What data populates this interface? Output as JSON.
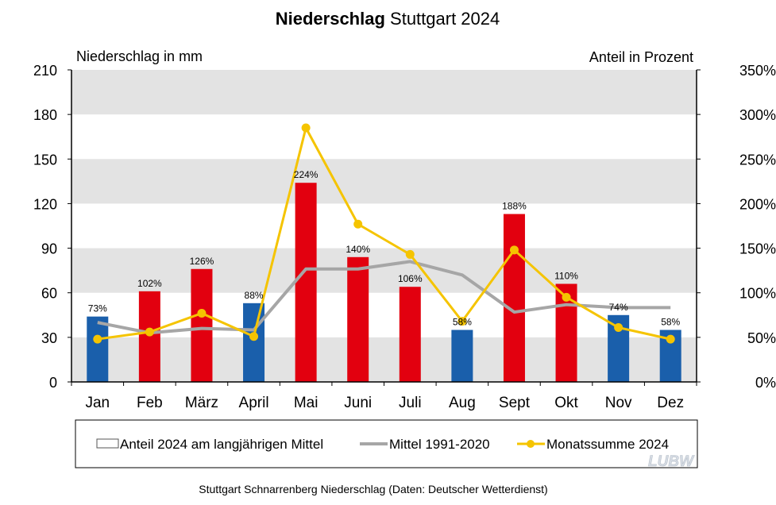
{
  "chart_data": {
    "type": "bar",
    "title_bold": "Niederschlag",
    "title_rest": "Stuttgart 2024",
    "ylabel_left": "Niederschlag  in mm",
    "ylabel_right": "Anteil  in Prozent",
    "ylim_left": [
      0,
      210
    ],
    "ylim_right": [
      0,
      350
    ],
    "yticks_left": [
      "0",
      "30",
      "60",
      "90",
      "120",
      "150",
      "180",
      "210"
    ],
    "yticks_right": [
      "0%",
      "50%",
      "100%",
      "150%",
      "200%",
      "250%",
      "300%",
      "350%"
    ],
    "categories": [
      "Jan",
      "Feb",
      "März",
      "April",
      "Mai",
      "Juni",
      "Juli",
      "Aug",
      "Sept",
      "Okt",
      "Nov",
      "Dez"
    ],
    "bars": {
      "name": "Anteil 2024 am langjährigen Mittel",
      "values_mm": [
        44,
        61,
        76,
        53,
        134,
        84,
        64,
        35,
        113,
        66,
        45,
        35
      ],
      "labels": [
        "73%",
        "102%",
        "126%",
        "88%",
        "224%",
        "140%",
        "106%",
        "58%",
        "188%",
        "110%",
        "74%",
        "58%"
      ],
      "colors": [
        "#1a5fab",
        "#e2000f",
        "#e2000f",
        "#1a5fab",
        "#e2000f",
        "#e2000f",
        "#e2000f",
        "#1a5fab",
        "#e2000f",
        "#e2000f",
        "#1a5fab",
        "#1a5fab"
      ]
    },
    "series": [
      {
        "name": "Mittel 1991-2020",
        "axis": "left",
        "color": "#a6a6a6",
        "values": [
          40,
          33,
          36,
          35,
          76,
          76,
          81,
          72,
          47,
          52,
          50,
          50
        ]
      },
      {
        "name": "Monatssumme 2024",
        "axis": "right",
        "color": "#f5c400",
        "values": [
          48,
          56,
          77,
          51,
          285,
          177,
          143,
          68,
          148,
          95,
          61,
          48
        ]
      }
    ],
    "legend": {
      "bar_label": "Anteil 2024 am langjährigen Mittel",
      "mean_label": "Mittel 1991-2020",
      "monthly_label": "Monatssumme 2024"
    },
    "grid": true,
    "logo_text": "LUBW",
    "footnote": "Stuttgart Schnarrenberg Niederschlag (Daten: Deutscher Wetterdienst)"
  }
}
